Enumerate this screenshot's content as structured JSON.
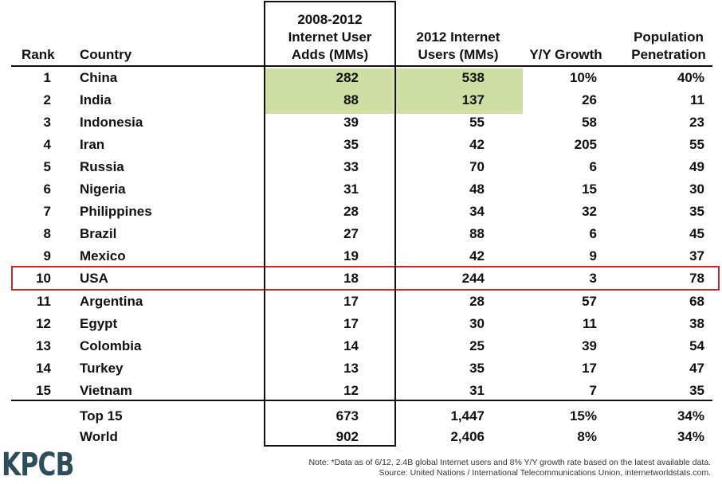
{
  "chart_data": {
    "type": "table",
    "columns": [
      "Rank",
      "Country",
      "2008-2012 Internet User Adds (MMs)",
      "2012 Internet Users (MMs)",
      "Y/Y Growth",
      "Population Penetration"
    ],
    "header_lines": {
      "rank": [
        "Rank"
      ],
      "country": [
        "Country"
      ],
      "adds": [
        "2008-2012",
        "Internet User",
        "Adds (MMs)"
      ],
      "users": [
        "2012 Internet",
        "Users (MMs)"
      ],
      "growth": [
        "Y/Y Growth"
      ],
      "pen": [
        "Population",
        "Penetration"
      ]
    },
    "rows": [
      {
        "rank": "1",
        "country": "China",
        "adds": "282",
        "users": "538",
        "growth": "10%",
        "pen": "40%"
      },
      {
        "rank": "2",
        "country": "India",
        "adds": "88",
        "users": "137",
        "growth": "26",
        "pen": "11"
      },
      {
        "rank": "3",
        "country": "Indonesia",
        "adds": "39",
        "users": "55",
        "growth": "58",
        "pen": "23"
      },
      {
        "rank": "4",
        "country": "Iran",
        "adds": "35",
        "users": "42",
        "growth": "205",
        "pen": "55"
      },
      {
        "rank": "5",
        "country": "Russia",
        "adds": "33",
        "users": "70",
        "growth": "6",
        "pen": "49"
      },
      {
        "rank": "6",
        "country": "Nigeria",
        "adds": "31",
        "users": "48",
        "growth": "15",
        "pen": "30"
      },
      {
        "rank": "7",
        "country": "Philippines",
        "adds": "28",
        "users": "34",
        "growth": "32",
        "pen": "35"
      },
      {
        "rank": "8",
        "country": "Brazil",
        "adds": "27",
        "users": "88",
        "growth": "6",
        "pen": "45"
      },
      {
        "rank": "9",
        "country": "Mexico",
        "adds": "19",
        "users": "42",
        "growth": "9",
        "pen": "37"
      },
      {
        "rank": "10",
        "country": "USA",
        "adds": "18",
        "users": "244",
        "growth": "3",
        "pen": "78"
      },
      {
        "rank": "11",
        "country": "Argentina",
        "adds": "17",
        "users": "28",
        "growth": "57",
        "pen": "68"
      },
      {
        "rank": "12",
        "country": "Egypt",
        "adds": "17",
        "users": "30",
        "growth": "11",
        "pen": "38"
      },
      {
        "rank": "13",
        "country": "Colombia",
        "adds": "14",
        "users": "25",
        "growth": "39",
        "pen": "54"
      },
      {
        "rank": "14",
        "country": "Turkey",
        "adds": "13",
        "users": "35",
        "growth": "17",
        "pen": "47"
      },
      {
        "rank": "15",
        "country": "Vietnam",
        "adds": "12",
        "users": "31",
        "growth": "7",
        "pen": "35"
      }
    ],
    "totals": [
      {
        "label": "Top 15",
        "adds": "673",
        "users": "1,447",
        "growth": "15%",
        "pen": "34%"
      },
      {
        "label": "World",
        "adds": "902",
        "users": "2,406",
        "growth": "8%",
        "pen": "34%"
      }
    ],
    "highlighted_rows": [
      "China",
      "India"
    ],
    "highlight_color": "#cfdfa4",
    "outlined_row": "USA",
    "outline_color": "#c0282b"
  },
  "logo_text": "KPCB",
  "logo_color": "#2d4d5a",
  "note_lines": [
    "Note: *Data as of 6/12, 2.4B global Internet users and 8% Y/Y growth rate based on the latest available data.",
    "Source: United Nations / International Telecommunications Union, internetworldstats.com."
  ]
}
